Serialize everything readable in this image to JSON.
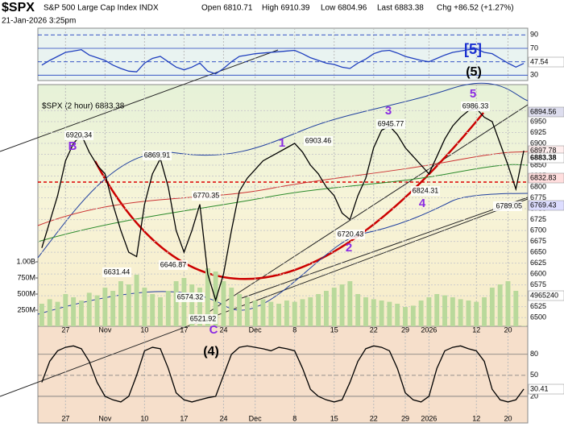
{
  "chart_data": {
    "type": "line",
    "header": {
      "symbol": "$SPX",
      "name": "S&P 500 Large Cap Index INDX",
      "date": "21-Jan-2026 3:25pm",
      "open": "Open 6810.71",
      "high": "High 6910.39",
      "low": "Low 6804.96",
      "last": "Last 6883.38",
      "change": "Chg +86.52 (+1.27%)"
    },
    "legend": "$SPX (2 hour) 6883.38",
    "xlim": [
      -0.5,
      61.5
    ],
    "xticks": [
      {
        "value": 3,
        "label": "27"
      },
      {
        "value": 8,
        "label": "Nov"
      },
      {
        "value": 13,
        "label": "10"
      },
      {
        "value": 18,
        "label": "17"
      },
      {
        "value": 23,
        "label": "24"
      },
      {
        "value": 27,
        "label": "Dec"
      },
      {
        "value": 32,
        "label": "8"
      },
      {
        "value": 37,
        "label": "15"
      },
      {
        "value": 42,
        "label": "22"
      },
      {
        "value": 46,
        "label": "29"
      },
      {
        "value": 49,
        "label": "2026"
      },
      {
        "value": 55,
        "label": "12"
      },
      {
        "value": 59,
        "label": "20"
      }
    ],
    "ylim": [
      6480,
      7035
    ],
    "yticks": [
      6500,
      6525,
      6550,
      6575,
      6600,
      6625,
      6650,
      6675,
      6700,
      6725,
      6750,
      6775,
      6800,
      6825,
      6850,
      6875,
      6900,
      6925,
      6950,
      6975
    ],
    "y2lim": [
      0,
      3750000000
    ],
    "y2ticks": [
      {
        "value": 250000000,
        "label": "250M"
      },
      {
        "value": 500000000,
        "label": "500M"
      },
      {
        "value": 750000000,
        "label": "750M"
      },
      {
        "value": 1000000000,
        "label": "1.00B"
      }
    ],
    "grid": true,
    "series": [
      {
        "name": "$SPX",
        "color": "#000000",
        "values": [
          6660,
          6720,
          6780,
          6860,
          6900,
          6920,
          6880,
          6850,
          6830,
          6760,
          6700,
          6650,
          6640,
          6760,
          6830,
          6865,
          6800,
          6700,
          6650,
          6700,
          6760,
          6600,
          6540,
          6600,
          6700,
          6790,
          6820,
          6840,
          6860,
          6870,
          6880,
          6890,
          6900,
          6880,
          6850,
          6830,
          6800,
          6780,
          6740,
          6725,
          6780,
          6820,
          6890,
          6930,
          6940,
          6920,
          6890,
          6870,
          6850,
          6830,
          6870,
          6910,
          6940,
          6960,
          6975,
          6980,
          6960,
          6950,
          6900,
          6850,
          6795,
          6883.38
        ]
      },
      {
        "name": "Volume",
        "color": "#b9d99b",
        "axis": "y2",
        "values": [
          350000000,
          420000000,
          380000000,
          500000000,
          450000000,
          400000000,
          520000000,
          480000000,
          600000000,
          550000000,
          700000000,
          650000000,
          800000000,
          600000000,
          500000000,
          450000000,
          550000000,
          700000000,
          750000000,
          650000000,
          600000000,
          900000000,
          850000000,
          700000000,
          600000000,
          500000000,
          450000000,
          400000000,
          420000000,
          380000000,
          350000000,
          400000000,
          380000000,
          420000000,
          450000000,
          500000000,
          550000000,
          600000000,
          650000000,
          700000000,
          500000000,
          450000000,
          420000000,
          400000000,
          380000000,
          350000000,
          300000000,
          320000000,
          400000000,
          450000000,
          500000000,
          480000000,
          450000000,
          420000000,
          400000000,
          380000000,
          450000000,
          600000000,
          650000000,
          700000000,
          550000000,
          4965240
        ]
      }
    ],
    "rsi": {
      "color": "#1f3fbf",
      "ylim": [
        22,
        100
      ],
      "yticks": [
        30,
        50,
        70,
        90
      ],
      "values": [
        45,
        52,
        58,
        64,
        66,
        68,
        60,
        56,
        52,
        45,
        40,
        36,
        35,
        48,
        55,
        58,
        50,
        42,
        38,
        42,
        48,
        36,
        32,
        40,
        50,
        58,
        60,
        62,
        63,
        64,
        65,
        66,
        67,
        62,
        56,
        52,
        48,
        46,
        42,
        40,
        48,
        54,
        62,
        66,
        67,
        63,
        58,
        55,
        52,
        50,
        55,
        60,
        64,
        66,
        68,
        69,
        64,
        62,
        55,
        48,
        42,
        47.54
      ]
    },
    "stochastic": {
      "color": "#000000",
      "ylim": [
        -18,
        120
      ],
      "yticks": [
        20,
        50,
        80
      ],
      "values": [
        40,
        70,
        85,
        90,
        92,
        88,
        70,
        40,
        20,
        15,
        12,
        20,
        50,
        85,
        90,
        88,
        60,
        25,
        15,
        12,
        15,
        18,
        20,
        50,
        80,
        90,
        92,
        90,
        88,
        85,
        90,
        88,
        85,
        60,
        30,
        20,
        15,
        12,
        15,
        40,
        70,
        88,
        92,
        90,
        85,
        60,
        25,
        15,
        12,
        20,
        60,
        85,
        90,
        92,
        88,
        85,
        70,
        30,
        15,
        12,
        15,
        30.41
      ]
    },
    "overlay_labels": [
      "47.54",
      "6894.56",
      "6897.78",
      "6883.38",
      "6832.83",
      "6769.43",
      "4965240",
      "30.41"
    ],
    "annotations": [
      "B",
      "6920.34",
      "6869.91",
      "6631.44",
      "6646.87",
      "6770.35",
      "6574.32",
      "6521.92",
      "C",
      "1",
      "6903.46",
      "2",
      "6720.43",
      "3",
      "6945.77",
      "4",
      "6824.31",
      "5",
      "6986.33",
      "6789.05",
      "[5]",
      "(5)",
      "(4)"
    ]
  }
}
